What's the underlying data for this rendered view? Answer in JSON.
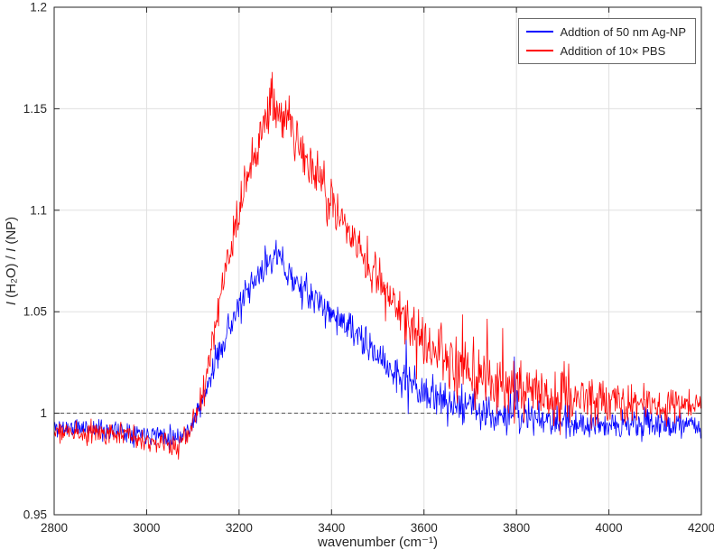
{
  "chart_data": {
    "type": "line",
    "title": "",
    "xlabel": "wavenumber (cm⁻¹)",
    "ylabel": "I (H₂O) / I (NP)",
    "ylabel_runs": [
      {
        "text": "I",
        "italic": true
      },
      {
        "text": " (H₂O) / ",
        "italic": false
      },
      {
        "text": "I",
        "italic": true
      },
      {
        "text": " (NP)",
        "italic": false
      }
    ],
    "xlim": [
      2800,
      4200
    ],
    "ylim": [
      0.95,
      1.2
    ],
    "xticks": [
      2800,
      3000,
      3200,
      3400,
      3600,
      3800,
      4000,
      4200
    ],
    "yticks": [
      0.95,
      1,
      1.05,
      1.1,
      1.15,
      1.2
    ],
    "ytick_labels": [
      "0.95",
      "1",
      "1.05",
      "1.1",
      "1.15",
      "1.2"
    ],
    "grid": true,
    "grid_color": "#e0e0e0",
    "axis_color": "#262626",
    "legend_position": "top-right",
    "reference_line": {
      "y": 1,
      "style": "dashed",
      "color": "#404040"
    },
    "series": [
      {
        "name": "Addtion of 50 nm Ag-NP",
        "color": "#0000ff",
        "anchors": [
          [
            2800,
            0.993
          ],
          [
            2880,
            0.9925
          ],
          [
            2960,
            0.991
          ],
          [
            3020,
            0.99
          ],
          [
            3060,
            0.9885
          ],
          [
            3085,
            0.99
          ],
          [
            3105,
            0.998
          ],
          [
            3125,
            1.008
          ],
          [
            3150,
            1.026
          ],
          [
            3175,
            1.041
          ],
          [
            3200,
            1.052
          ],
          [
            3230,
            1.063
          ],
          [
            3255,
            1.072
          ],
          [
            3275,
            1.079
          ],
          [
            3290,
            1.075
          ],
          [
            3310,
            1.068
          ],
          [
            3340,
            1.06
          ],
          [
            3370,
            1.055
          ],
          [
            3400,
            1.049
          ],
          [
            3440,
            1.042
          ],
          [
            3480,
            1.032
          ],
          [
            3520,
            1.024
          ],
          [
            3560,
            1.015
          ],
          [
            3600,
            1.01
          ],
          [
            3650,
            1.006
          ],
          [
            3700,
            1.003
          ],
          [
            3750,
            1.0
          ],
          [
            3800,
            0.999
          ],
          [
            3850,
            0.997
          ],
          [
            3900,
            0.996
          ],
          [
            3960,
            0.995
          ],
          [
            4050,
            0.994
          ],
          [
            4120,
            0.9945
          ],
          [
            4200,
            0.994
          ]
        ],
        "noise_anchors": [
          [
            2800,
            0.0032
          ],
          [
            3080,
            0.0032
          ],
          [
            3200,
            0.0045
          ],
          [
            3280,
            0.005
          ],
          [
            3400,
            0.0045
          ],
          [
            3500,
            0.005
          ],
          [
            3600,
            0.0055
          ],
          [
            3750,
            0.006
          ],
          [
            3900,
            0.005
          ],
          [
            4000,
            0.0045
          ],
          [
            4200,
            0.004
          ]
        ],
        "spikes": {
          "range": [
            3500,
            3950
          ],
          "prob": 0.02,
          "min": 0.012,
          "max": 0.04,
          "neg_prob": 0.35
        }
      },
      {
        "name": "Addition of 10× PBS",
        "color": "#ff0000",
        "anchors": [
          [
            2800,
            0.991
          ],
          [
            2880,
            0.99
          ],
          [
            2960,
            0.989
          ],
          [
            3020,
            0.987
          ],
          [
            3060,
            0.9835
          ],
          [
            3085,
            0.987
          ],
          [
            3105,
            0.998
          ],
          [
            3125,
            1.015
          ],
          [
            3150,
            1.045
          ],
          [
            3175,
            1.075
          ],
          [
            3200,
            1.1
          ],
          [
            3225,
            1.122
          ],
          [
            3250,
            1.14
          ],
          [
            3270,
            1.152
          ],
          [
            3285,
            1.15
          ],
          [
            3305,
            1.143
          ],
          [
            3330,
            1.133
          ],
          [
            3360,
            1.12
          ],
          [
            3390,
            1.108
          ],
          [
            3420,
            1.097
          ],
          [
            3450,
            1.086
          ],
          [
            3480,
            1.074
          ],
          [
            3510,
            1.063
          ],
          [
            3540,
            1.052
          ],
          [
            3570,
            1.043
          ],
          [
            3600,
            1.035
          ],
          [
            3640,
            1.028
          ],
          [
            3680,
            1.021
          ],
          [
            3720,
            1.017
          ],
          [
            3760,
            1.014
          ],
          [
            3800,
            1.011
          ],
          [
            3850,
            1.009
          ],
          [
            3900,
            1.007
          ],
          [
            3960,
            1.006
          ],
          [
            4040,
            1.005
          ],
          [
            4120,
            1.004
          ],
          [
            4200,
            1.004
          ]
        ],
        "noise_anchors": [
          [
            2800,
            0.0032
          ],
          [
            3060,
            0.0035
          ],
          [
            3150,
            0.005
          ],
          [
            3270,
            0.008
          ],
          [
            3400,
            0.007
          ],
          [
            3500,
            0.006
          ],
          [
            3580,
            0.007
          ],
          [
            3700,
            0.009
          ],
          [
            3850,
            0.009
          ],
          [
            3950,
            0.007
          ],
          [
            4100,
            0.0055
          ],
          [
            4200,
            0.005
          ]
        ],
        "spikes": {
          "range": [
            3560,
            3960
          ],
          "prob": 0.03,
          "min": 0.012,
          "max": 0.05,
          "neg_prob": 0.25
        }
      }
    ]
  }
}
